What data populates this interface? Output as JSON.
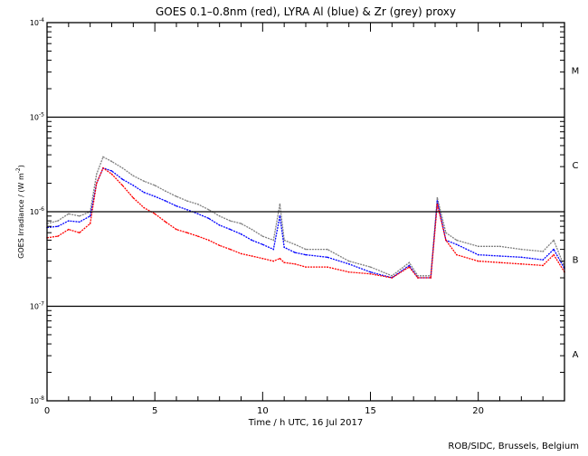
{
  "chart_data": {
    "type": "line",
    "title": "GOES 0.1–0.8nm (red), LYRA Al (blue) & Zr (grey) proxy",
    "xlabel": "Time / h UTC, 16 Jul 2017",
    "ylabel": "GOES Irradiance / (W m",
    "ylabel_sup": "-2",
    "ylabel_end": ")",
    "xlim": [
      0,
      24
    ],
    "ylim": [
      1e-08,
      0.0001
    ],
    "yscale": "log",
    "xticks": [
      "0",
      "5",
      "10",
      "15",
      "20"
    ],
    "xtick_values": [
      0,
      5,
      10,
      15,
      20
    ],
    "yticks": [
      {
        "base": "10",
        "exp": "-8"
      },
      {
        "base": "10",
        "exp": "-7"
      },
      {
        "base": "10",
        "exp": "-6"
      },
      {
        "base": "10",
        "exp": "-5"
      },
      {
        "base": "10",
        "exp": "-4"
      }
    ],
    "ytick_exponents": [
      -8,
      -7,
      -6,
      -5,
      -4
    ],
    "flare_classes": [
      {
        "label": "A",
        "exp": -7.5
      },
      {
        "label": "B",
        "exp": -6.5
      },
      {
        "label": "C",
        "exp": -5.5
      },
      {
        "label": "M",
        "exp": -4.5
      }
    ],
    "threshold_lines": [
      1e-07,
      1e-06,
      1e-05
    ],
    "series": [
      {
        "name": "LYRA Zr proxy",
        "color": "#808080",
        "x": [
          0,
          0.5,
          1,
          1.5,
          2,
          2.3,
          2.6,
          3,
          3.5,
          4,
          4.5,
          5,
          5.5,
          6,
          6.5,
          7,
          7.5,
          8,
          8.5,
          9,
          9.5,
          10,
          10.5,
          10.8,
          11,
          11.5,
          12,
          13,
          14,
          15,
          16,
          16.8,
          17.2,
          17.8,
          18.1,
          18.5,
          19,
          20,
          21,
          22,
          23,
          23.5,
          24
        ],
        "y": [
          7.5e-07,
          8e-07,
          9.5e-07,
          9e-07,
          1e-06,
          2.5e-06,
          3.8e-06,
          3.4e-06,
          2.9e-06,
          2.4e-06,
          2.1e-06,
          1.9e-06,
          1.65e-06,
          1.45e-06,
          1.3e-06,
          1.2e-06,
          1.05e-06,
          9e-07,
          8e-07,
          7.5e-07,
          6.5e-07,
          5.5e-07,
          5e-07,
          1.2e-06,
          5e-07,
          4.5e-07,
          4e-07,
          4e-07,
          3e-07,
          2.6e-07,
          2.1e-07,
          2.9e-07,
          2.1e-07,
          2.1e-07,
          1.4e-06,
          6e-07,
          5e-07,
          4.3e-07,
          4.3e-07,
          4e-07,
          3.8e-07,
          5e-07,
          2.6e-07
        ]
      },
      {
        "name": "LYRA Al proxy",
        "color": "#0000ff",
        "x": [
          0,
          0.5,
          1,
          1.5,
          2,
          2.3,
          2.6,
          3,
          3.5,
          4,
          4.5,
          5,
          5.5,
          6,
          6.5,
          7,
          7.5,
          8,
          8.5,
          9,
          9.5,
          10,
          10.5,
          10.8,
          11,
          11.5,
          12,
          13,
          14,
          15,
          16,
          16.8,
          17.2,
          17.8,
          18.1,
          18.5,
          19,
          20,
          21,
          22,
          23,
          23.5,
          24
        ],
        "y": [
          6.8e-07,
          7e-07,
          8e-07,
          7.8e-07,
          9e-07,
          2e-06,
          2.9e-06,
          2.7e-06,
          2.2e-06,
          1.9e-06,
          1.6e-06,
          1.45e-06,
          1.3e-06,
          1.15e-06,
          1.05e-06,
          9.5e-07,
          8.5e-07,
          7.2e-07,
          6.5e-07,
          5.8e-07,
          5e-07,
          4.5e-07,
          4e-07,
          9e-07,
          4.2e-07,
          3.7e-07,
          3.5e-07,
          3.3e-07,
          2.8e-07,
          2.3e-07,
          2e-07,
          2.7e-07,
          2e-07,
          2e-07,
          1.3e-06,
          5e-07,
          4.5e-07,
          3.5e-07,
          3.4e-07,
          3.3e-07,
          3.1e-07,
          4e-07,
          2.5e-07
        ]
      },
      {
        "name": "GOES 0.1-0.8nm",
        "color": "#ff0000",
        "x": [
          0,
          0.5,
          1,
          1.5,
          2,
          2.3,
          2.6,
          3,
          3.5,
          4,
          4.5,
          5,
          5.5,
          6,
          6.5,
          7,
          7.5,
          8,
          8.5,
          9,
          9.5,
          10,
          10.5,
          10.8,
          11,
          11.5,
          12,
          13,
          14,
          15,
          16,
          16.8,
          17.2,
          17.8,
          18.1,
          18.5,
          19,
          20,
          21,
          22,
          23,
          23.5,
          24
        ],
        "y": [
          5.3e-07,
          5.5e-07,
          6.5e-07,
          6e-07,
          7.5e-07,
          2e-06,
          2.9e-06,
          2.5e-06,
          1.9e-06,
          1.4e-06,
          1.1e-06,
          9.5e-07,
          7.8e-07,
          6.5e-07,
          6e-07,
          5.5e-07,
          5e-07,
          4.4e-07,
          4e-07,
          3.6e-07,
          3.4e-07,
          3.2e-07,
          3e-07,
          3.2e-07,
          2.9e-07,
          2.8e-07,
          2.6e-07,
          2.6e-07,
          2.3e-07,
          2.2e-07,
          2e-07,
          2.6e-07,
          2e-07,
          2e-07,
          1.2e-06,
          5e-07,
          3.5e-07,
          3e-07,
          2.9e-07,
          2.8e-07,
          2.7e-07,
          3.5e-07,
          2.3e-07
        ]
      }
    ],
    "legend": "none",
    "grid": false
  },
  "credit": "ROB/SIDC, Brussels, Belgium"
}
